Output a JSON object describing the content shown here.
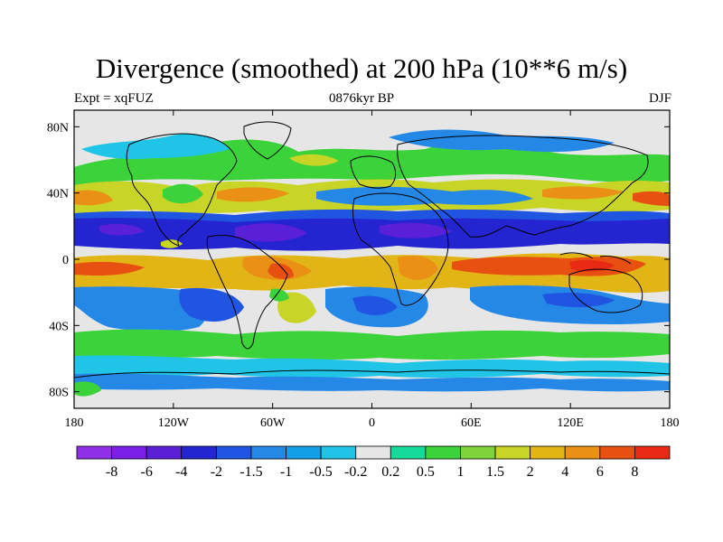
{
  "title": "Divergence (smoothed) at 200 hPa (10**6 m/s)",
  "subtitle": {
    "left": "Expt = xqFUZ",
    "center": "0876kyr BP",
    "right": "DJF"
  },
  "map": {
    "lon_range": [
      -180,
      180
    ],
    "lat_range": [
      -90,
      90
    ],
    "x_ticks": [
      {
        "lon": -180,
        "label": "180"
      },
      {
        "lon": -120,
        "label": "120W"
      },
      {
        "lon": -60,
        "label": "60W"
      },
      {
        "lon": 0,
        "label": "0"
      },
      {
        "lon": 60,
        "label": "60E"
      },
      {
        "lon": 120,
        "label": "120E"
      },
      {
        "lon": 180,
        "label": "180"
      }
    ],
    "y_ticks": [
      {
        "lat": 80,
        "label": "80N"
      },
      {
        "lat": 40,
        "label": "40N"
      },
      {
        "lat": 0,
        "label": "0"
      },
      {
        "lat": -40,
        "label": "40S"
      },
      {
        "lat": -80,
        "label": "80S"
      }
    ],
    "background_color": "#e6e6e6"
  },
  "colorbar": {
    "colors": [
      "#8f2fe8",
      "#7a1ee8",
      "#5a20d8",
      "#2424d0",
      "#1f55e0",
      "#2688e6",
      "#139ee8",
      "#1fc4e6",
      "#e6e6e6",
      "#16d99a",
      "#3cd23a",
      "#7ed23a",
      "#c8d426",
      "#e2b516",
      "#ea9014",
      "#e85012",
      "#e82a14"
    ],
    "labels": [
      "-8",
      "-6",
      "-4",
      "-2",
      "-1.5",
      "-1",
      "-0.5",
      "-0.2",
      "0.2",
      "0.5",
      "1",
      "1.5",
      "2",
      "4",
      "6",
      "8"
    ]
  },
  "chart_data": {
    "type": "heatmap",
    "title": "Divergence (smoothed) at 200 hPa (10**6 m/s)",
    "variable": "divergence at 200 hPa",
    "units": "10**6 m/s",
    "xlabel": "",
    "ylabel": "",
    "xlim": [
      -180,
      180
    ],
    "ylim": [
      -90,
      90
    ],
    "contour_levels": [
      -8,
      -6,
      -4,
      -2,
      -1.5,
      -1,
      -0.5,
      -0.2,
      0.2,
      0.5,
      1,
      1.5,
      2,
      4,
      6,
      8
    ]
  }
}
